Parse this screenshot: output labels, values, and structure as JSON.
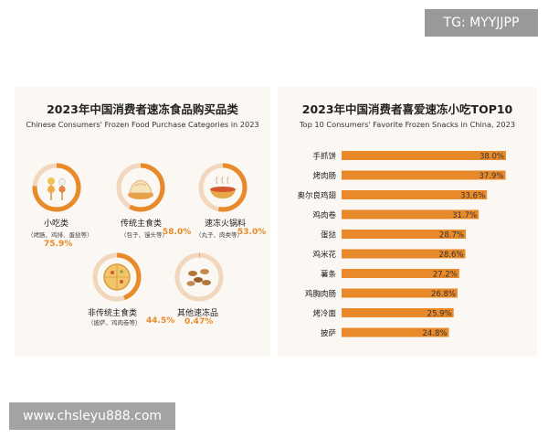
{
  "watermark_top": "TG: MYYJJPP",
  "watermark_bottom": "www.chsleyu888.com",
  "left_panel": {
    "title_cn": "2023年中国消费者速冻食品购买品类",
    "title_en": "Chinese Consumers' Frozen Food Purchase Categories in 2023",
    "categories": [
      {
        "label": "小吃类",
        "sub": "（烤肠、鸡排、蛋挞等）",
        "pct": "75.9%",
        "value": 75.9,
        "icon": "skewer-icon"
      },
      {
        "label": "传统主食类",
        "sub": "（包子、馒头等）",
        "pct": "58.0%",
        "value": 58.0,
        "icon": "dumpling-icon"
      },
      {
        "label": "速冻火锅料",
        "sub": "（丸子、肉类等）",
        "pct": "53.0%",
        "value": 53.0,
        "icon": "hotpot-icon"
      },
      {
        "label": "非传统主食类",
        "sub": "（披萨、鸡肉卷等）",
        "pct": "44.5%",
        "value": 44.5,
        "icon": "pizza-icon"
      },
      {
        "label": "其他速冻品",
        "sub": "",
        "pct": "0.47%",
        "value": 0.47,
        "icon": "nuts-icon"
      }
    ],
    "colors": {
      "accent": "#e98a2a",
      "track": "#f0d7bd"
    }
  },
  "right_panel": {
    "title_cn": "2023年中国消费者喜爱速冻小吃TOP10",
    "title_en": "Top 10 Consumers' Favorite Frozen Snacks in China, 2023"
  },
  "chart_data": {
    "type": "bar",
    "orientation": "horizontal",
    "categories": [
      "手抓饼",
      "烤肉肠",
      "奥尔良鸡翅",
      "鸡肉卷",
      "蛋挞",
      "鸡米花",
      "薯条",
      "鸡胸肉肠",
      "烤冷面",
      "披萨"
    ],
    "values": [
      38.0,
      37.9,
      33.6,
      31.7,
      28.7,
      28.6,
      27.2,
      26.8,
      25.9,
      24.8
    ],
    "value_labels": [
      "38.0%",
      "37.9%",
      "33.6%",
      "31.7%",
      "28.7%",
      "28.6%",
      "27.2%",
      "26.8%",
      "25.9%",
      "24.8%"
    ],
    "xlim": [
      0,
      38
    ],
    "color": "#e98a2a"
  }
}
